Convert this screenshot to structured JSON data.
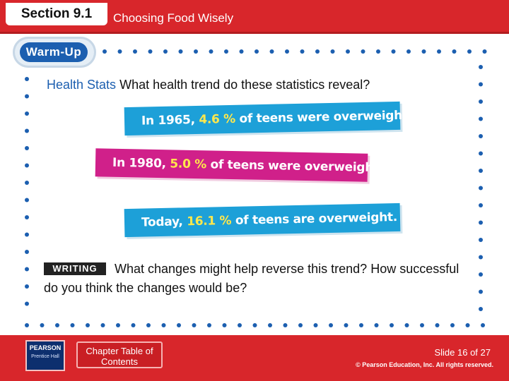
{
  "header": {
    "section_tab": "Section 9.1",
    "title": "Choosing Food Wisely"
  },
  "warmup": {
    "label": "Warm-Up"
  },
  "question": {
    "lead": "Health Stats",
    "text": "What health trend do these statistics reveal?"
  },
  "stats": [
    {
      "prefix": "In 1965, ",
      "value": "4.6 %",
      "suffix": " of teens were overweight."
    },
    {
      "prefix": "In 1980, ",
      "value": "5.0 %",
      "suffix": " of teens were overweight."
    },
    {
      "prefix": "Today, ",
      "value": "16.1 %",
      "suffix": " of teens are overweight."
    }
  ],
  "writing": {
    "label": "WRITING",
    "text": "What changes might help reverse this trend? How successful do you think the changes would be?"
  },
  "footer": {
    "publisher_logo": "PEARSON",
    "publisher_sub": "Prentice Hall",
    "toc_button": "Chapter Table of Contents",
    "slide_number": "Slide 16 of 27",
    "copyright": "© Pearson Education, Inc. All rights reserved."
  },
  "colors": {
    "header_red": "#d8262b",
    "accent_blue": "#1da0d8",
    "accent_magenta": "#d0208a",
    "highlight_yellow": "#ffe84c",
    "dot_blue": "#1c5fb0"
  }
}
